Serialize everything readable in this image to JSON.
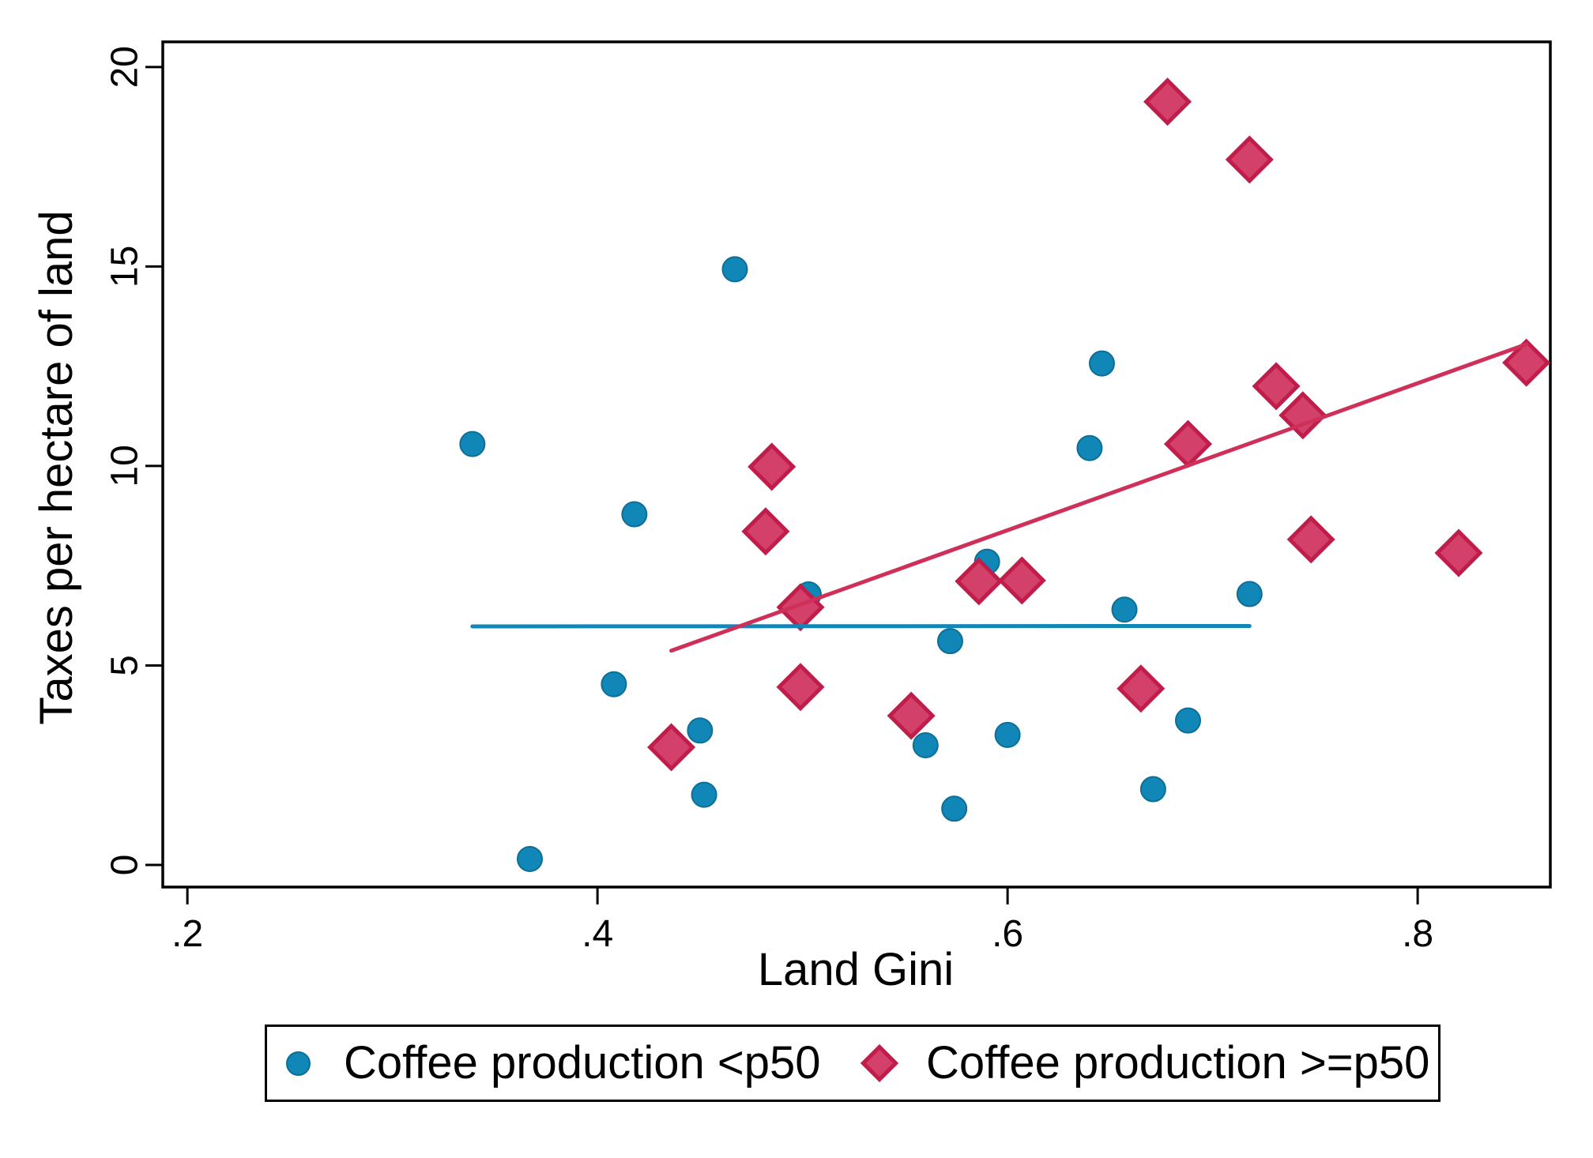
{
  "figure": {
    "background": "#ffffff",
    "text_color": "#000000"
  },
  "chart_data": {
    "type": "scatter",
    "title": "",
    "xlabel": "Land Gini",
    "ylabel": "Taxes per hectare of land",
    "xlim": [
      0.188,
      0.8647
    ],
    "ylim": [
      -0.554,
      20.63
    ],
    "grid": false,
    "x_ticks": {
      "values": [
        0.2,
        0.4,
        0.6,
        0.8
      ],
      "labels": [
        ".2",
        ".4",
        ".6",
        ".8"
      ]
    },
    "y_ticks": {
      "values": [
        0,
        5,
        10,
        15,
        20
      ],
      "labels": [
        "0",
        "5",
        "10",
        "15",
        "20"
      ]
    },
    "series": [
      {
        "name": "Coffee production <p50",
        "marker": "circle",
        "color": "#1187b7",
        "border_color": "#0d6e96",
        "points": [
          [
            0.339,
            10.55
          ],
          [
            0.467,
            14.93
          ],
          [
            0.646,
            12.57
          ],
          [
            0.64,
            10.45
          ],
          [
            0.418,
            8.79
          ],
          [
            0.59,
            7.6
          ],
          [
            0.503,
            6.78
          ],
          [
            0.718,
            6.79
          ],
          [
            0.657,
            6.4
          ],
          [
            0.572,
            5.61
          ],
          [
            0.408,
            4.53
          ],
          [
            0.45,
            3.37
          ],
          [
            0.56,
            3.0
          ],
          [
            0.6,
            3.26
          ],
          [
            0.688,
            3.62
          ],
          [
            0.452,
            1.76
          ],
          [
            0.574,
            1.41
          ],
          [
            0.671,
            1.9
          ],
          [
            0.367,
            0.15
          ]
        ]
      },
      {
        "name": "Coffee production >=p50",
        "marker": "diamond",
        "color": "#d34069",
        "border_color": "#c01d4a",
        "points": [
          [
            0.678,
            19.13
          ],
          [
            0.718,
            17.68
          ],
          [
            0.853,
            12.59
          ],
          [
            0.731,
            12.0
          ],
          [
            0.744,
            11.27
          ],
          [
            0.688,
            10.55
          ],
          [
            0.485,
            9.98
          ],
          [
            0.482,
            8.36
          ],
          [
            0.748,
            8.16
          ],
          [
            0.82,
            7.82
          ],
          [
            0.586,
            7.11
          ],
          [
            0.607,
            7.13
          ],
          [
            0.499,
            6.46
          ],
          [
            0.499,
            4.46
          ],
          [
            0.665,
            4.42
          ],
          [
            0.553,
            3.74
          ],
          [
            0.436,
            2.95
          ]
        ]
      }
    ],
    "fit_lines": [
      {
        "series": "Coffee production <p50",
        "color": "#1187b7",
        "x1": 0.339,
        "y1": 5.98,
        "x2": 0.718,
        "y2": 5.99
      },
      {
        "series": "Coffee production >=p50",
        "color": "#cf3059",
        "x1": 0.436,
        "y1": 5.37,
        "x2": 0.853,
        "y2": 13.05
      }
    ],
    "legend": {
      "position": "bottom",
      "entries": [
        "Coffee production <p50",
        "Coffee production >=p50"
      ]
    }
  }
}
